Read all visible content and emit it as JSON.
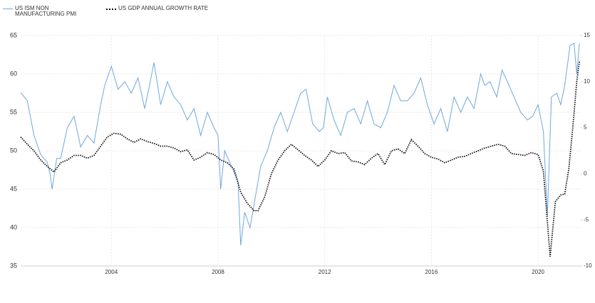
{
  "chart_data": {
    "type": "line",
    "series": [
      {
        "name": "US ISM NON MANUFACTURING PMI",
        "color": "#6fa8dc",
        "axis": "y",
        "x": [
          2000.6,
          2000.85,
          2001.1,
          2001.35,
          2001.6,
          2001.7,
          2001.78,
          2001.95,
          2002.1,
          2002.35,
          2002.6,
          2002.85,
          2003.1,
          2003.35,
          2003.6,
          2003.75,
          2004.0,
          2004.25,
          2004.5,
          2004.75,
          2005.0,
          2005.25,
          2005.4,
          2005.6,
          2005.85,
          2006.1,
          2006.35,
          2006.6,
          2006.85,
          2007.1,
          2007.35,
          2007.6,
          2007.85,
          2008.0,
          2008.1,
          2008.25,
          2008.5,
          2008.75,
          2008.85,
          2009.0,
          2009.2,
          2009.4,
          2009.6,
          2009.85,
          2010.1,
          2010.35,
          2010.6,
          2010.85,
          2011.1,
          2011.3,
          2011.55,
          2011.8,
          2011.95,
          2012.1,
          2012.35,
          2012.6,
          2012.85,
          2013.1,
          2013.35,
          2013.6,
          2013.85,
          2014.1,
          2014.35,
          2014.6,
          2014.85,
          2015.1,
          2015.35,
          2015.6,
          2015.85,
          2016.1,
          2016.35,
          2016.6,
          2016.85,
          2017.1,
          2017.35,
          2017.6,
          2017.85,
          2018.0,
          2018.2,
          2018.45,
          2018.65,
          2018.85,
          2019.1,
          2019.35,
          2019.6,
          2019.8,
          2020.0,
          2020.2,
          2020.35,
          2020.5,
          2020.7,
          2020.85,
          2021.0,
          2021.2,
          2021.35,
          2021.45,
          2021.55
        ],
        "values": [
          57.6,
          56.5,
          52,
          49.5,
          48.5,
          47,
          45,
          49,
          49,
          53,
          54.5,
          50.5,
          52,
          51,
          56,
          58.5,
          61,
          58,
          59,
          57.5,
          59.5,
          55.5,
          58,
          61.5,
          56,
          59,
          57,
          56,
          54,
          55.5,
          52,
          55,
          53,
          52,
          45,
          50,
          48,
          46,
          37.7,
          42,
          40,
          44,
          48,
          50,
          53,
          55,
          52.5,
          55,
          57.5,
          58,
          53.5,
          52.5,
          53,
          57,
          54,
          52,
          55,
          55.5,
          53.5,
          56.5,
          53.5,
          53,
          55,
          58.5,
          56.5,
          56.5,
          57.5,
          59.5,
          56,
          53.5,
          55.5,
          52.5,
          57,
          55,
          57,
          55.5,
          60,
          58.5,
          59,
          57,
          60.5,
          59,
          57,
          55,
          54,
          54.5,
          56,
          52.5,
          41.5,
          57,
          57.5,
          56,
          58.5,
          63.7,
          64,
          60,
          64
        ]
      },
      {
        "name": "US GDP ANNUAL GROWTH RATE",
        "color": "#111111",
        "axis": "y2",
        "x": [
          2000.6,
          2000.85,
          2001.1,
          2001.35,
          2001.6,
          2001.85,
          2002.1,
          2002.35,
          2002.6,
          2002.85,
          2003.1,
          2003.35,
          2003.6,
          2003.85,
          2004.1,
          2004.35,
          2004.6,
          2004.85,
          2005.1,
          2005.35,
          2005.6,
          2005.85,
          2006.1,
          2006.35,
          2006.6,
          2006.85,
          2007.1,
          2007.35,
          2007.6,
          2007.85,
          2008.1,
          2008.35,
          2008.6,
          2008.85,
          2009.1,
          2009.35,
          2009.5,
          2009.75,
          2010.0,
          2010.25,
          2010.5,
          2010.75,
          2011.0,
          2011.25,
          2011.5,
          2011.75,
          2012.0,
          2012.25,
          2012.5,
          2012.75,
          2013.0,
          2013.25,
          2013.5,
          2013.75,
          2014.0,
          2014.25,
          2014.5,
          2014.75,
          2015.0,
          2015.25,
          2015.5,
          2015.75,
          2016.0,
          2016.25,
          2016.5,
          2016.75,
          2017.0,
          2017.25,
          2017.5,
          2017.75,
          2018.0,
          2018.25,
          2018.5,
          2018.75,
          2019.0,
          2019.25,
          2019.5,
          2019.75,
          2020.0,
          2020.2,
          2020.45,
          2020.65,
          2020.85,
          2021.0,
          2021.15,
          2021.3,
          2021.45,
          2021.55
        ],
        "values": [
          4.0,
          3.2,
          2.5,
          1.5,
          0.8,
          0.2,
          1.2,
          1.5,
          2.0,
          2.0,
          1.7,
          2.0,
          3.0,
          4.0,
          4.4,
          4.3,
          3.8,
          3.4,
          3.8,
          3.5,
          3.3,
          3.0,
          3.0,
          2.8,
          2.4,
          2.6,
          1.5,
          1.8,
          2.3,
          2.1,
          1.5,
          1.2,
          0.5,
          -2.0,
          -3.2,
          -4.0,
          -4.0,
          -2.5,
          0.0,
          1.5,
          2.5,
          3.2,
          2.6,
          2.0,
          1.5,
          0.8,
          1.5,
          2.5,
          2.2,
          2.3,
          1.4,
          1.3,
          1.0,
          1.7,
          2.2,
          1.0,
          2.5,
          2.7,
          2.2,
          3.7,
          3.0,
          2.2,
          1.8,
          1.6,
          1.2,
          1.5,
          1.8,
          1.9,
          2.2,
          2.5,
          2.8,
          3.0,
          3.2,
          3.0,
          2.2,
          2.1,
          2.0,
          2.3,
          2.1,
          0.3,
          -9.0,
          -3.0,
          -2.3,
          -2.2,
          0.5,
          5,
          10,
          12.2
        ]
      }
    ],
    "xlim": [
      2000.6,
      2021.6
    ],
    "xticks": [
      2004,
      2008,
      2012,
      2016,
      2020
    ],
    "ylim": [
      35,
      65
    ],
    "yticks": [
      35,
      40,
      45,
      50,
      55,
      60,
      65
    ],
    "y2lim": [
      -10,
      15
    ],
    "y2ticks": [
      -10,
      -5,
      0,
      5,
      10,
      15
    ],
    "grid": true,
    "legend": "upper left"
  }
}
